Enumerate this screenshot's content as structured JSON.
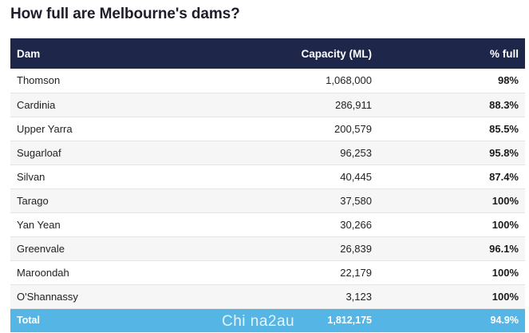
{
  "title": "How full are Melbourne's dams?",
  "table": {
    "headers": {
      "dam": "Dam",
      "capacity": "Capacity (ML)",
      "pct_full": "% full"
    },
    "rows": [
      {
        "dam": "Thomson",
        "capacity": "1,068,000",
        "pct_full": "98%"
      },
      {
        "dam": "Cardinia",
        "capacity": "286,911",
        "pct_full": "88.3%"
      },
      {
        "dam": "Upper Yarra",
        "capacity": "200,579",
        "pct_full": "85.5%"
      },
      {
        "dam": "Sugarloaf",
        "capacity": "96,253",
        "pct_full": "95.8%"
      },
      {
        "dam": "Silvan",
        "capacity": "40,445",
        "pct_full": "87.4%"
      },
      {
        "dam": "Tarago",
        "capacity": "37,580",
        "pct_full": "100%"
      },
      {
        "dam": "Yan Yean",
        "capacity": "30,266",
        "pct_full": "100%"
      },
      {
        "dam": "Greenvale",
        "capacity": "26,839",
        "pct_full": "96.1%"
      },
      {
        "dam": "Maroondah",
        "capacity": "22,179",
        "pct_full": "100%"
      },
      {
        "dam": "O'Shannassy",
        "capacity": "3,123",
        "pct_full": "100%"
      }
    ],
    "total": {
      "dam": "Total",
      "capacity": "1,812,175",
      "pct_full": "94.9%"
    }
  },
  "watermark": "Chi na2au",
  "colors": {
    "header_bg": "#1e2749",
    "total_bg": "#55b6e6",
    "row_alt_bg": "#f6f6f6"
  }
}
